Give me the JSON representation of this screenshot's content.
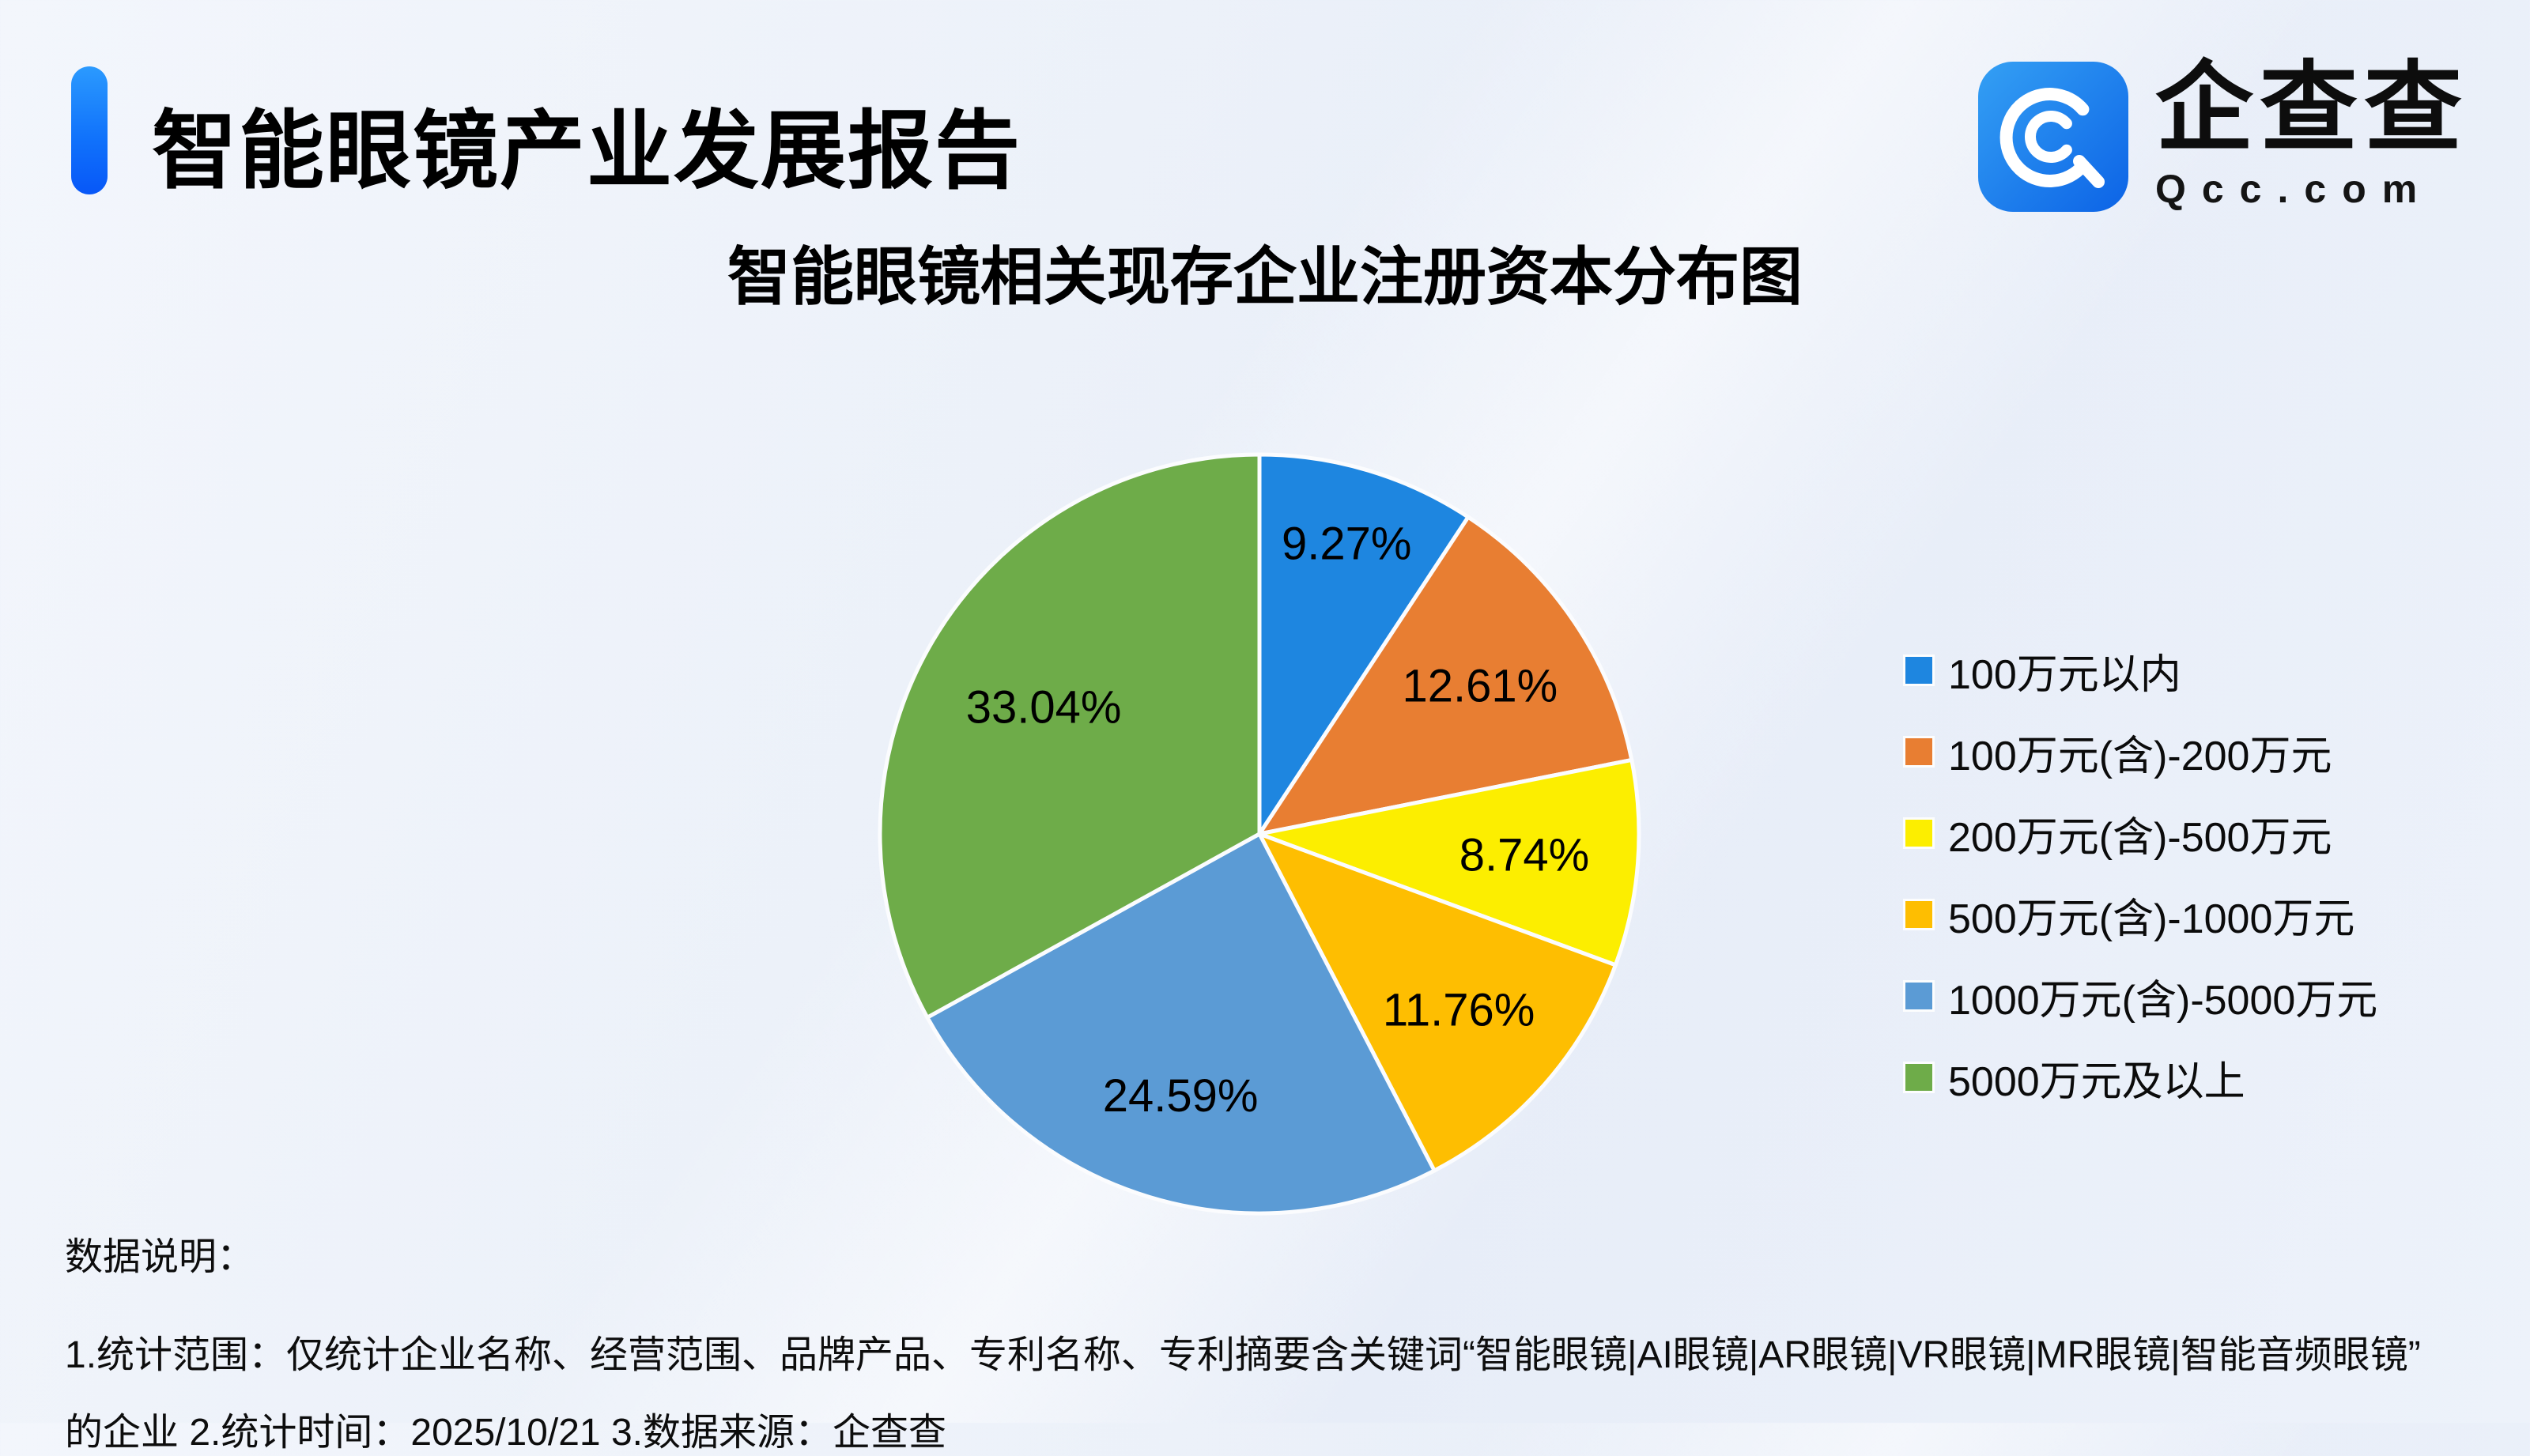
{
  "header": {
    "title": "智能眼镜产业发展报告",
    "logo": {
      "brand_name": "企查查",
      "brand_domain": "Qcc.com",
      "icon_color_top": "#2f94f1",
      "icon_color_bottom": "#0f6ae8"
    },
    "accent_color": "#1173fb"
  },
  "chart_data": {
    "type": "pie",
    "title": "智能眼镜相关现存企业注册资本分布图",
    "legend_position": "right",
    "label_format": "percent_2dp",
    "start_angle_deg": 0,
    "direction": "clockwise",
    "slices": [
      {
        "label": "100万元以内",
        "value": 9.27,
        "color": "#1E86E0",
        "label_r": 0.8
      },
      {
        "label": "100万元(含)-200万元",
        "value": 12.61,
        "color": "#E87E32",
        "label_r": 0.7
      },
      {
        "label": "200万元(含)-500万元",
        "value": 8.74,
        "color": "#FCEE00",
        "label_r": 0.7
      },
      {
        "label": "500万元(含)-1000万元",
        "value": 11.76,
        "color": "#FEBE01",
        "label_r": 0.7
      },
      {
        "label": "1000万元(含)-5000万元",
        "value": 24.59,
        "color": "#5B9BD5",
        "label_r": 0.72
      },
      {
        "label": "5000万元及以上",
        "value": 33.04,
        "color": "#6EAC49",
        "label_r": 0.66
      }
    ]
  },
  "notes": {
    "heading": "数据说明：",
    "line1": "1.统计范围：仅统计企业名称、经营范围、品牌产品、专利名称、专利摘要含关键词“智能眼镜|AI眼镜|AR眼镜|VR眼镜|MR眼镜|智能音频眼镜”",
    "line2": "的企业 2.统计时间：2025/10/21 3.数据来源：企查查"
  }
}
